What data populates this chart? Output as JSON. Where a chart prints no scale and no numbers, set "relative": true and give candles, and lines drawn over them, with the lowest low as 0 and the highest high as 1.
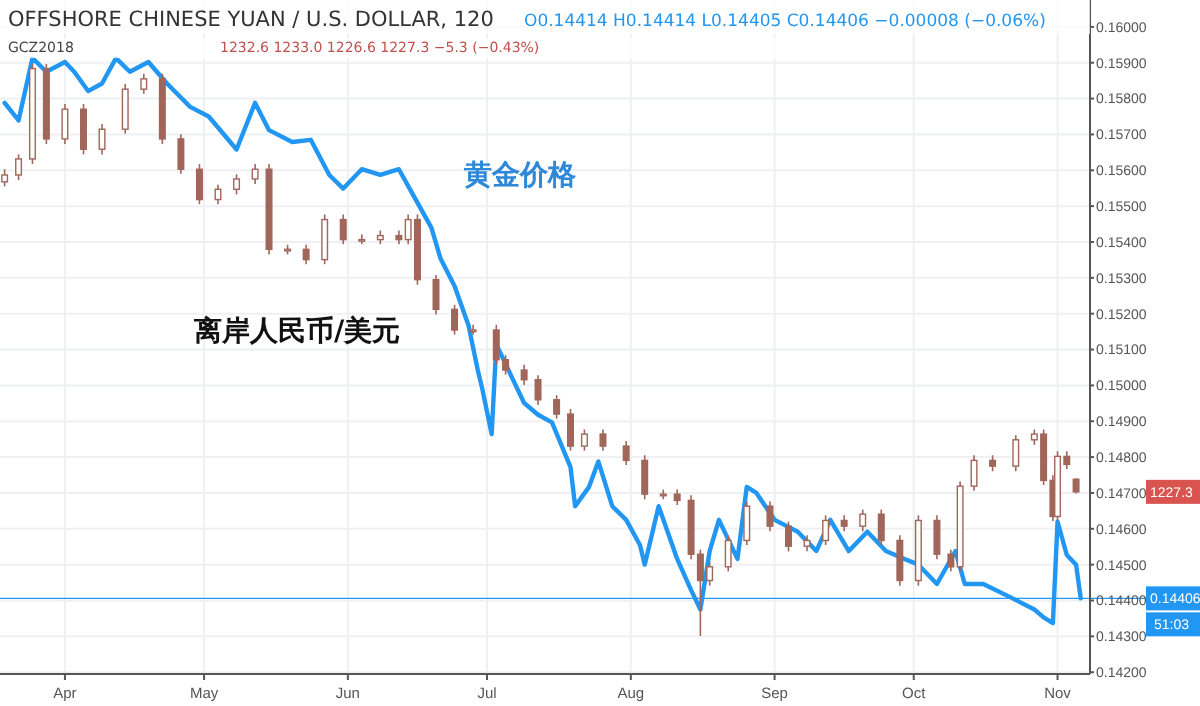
{
  "chart_data": [
    {
      "type": "line",
      "title": "OFFSHORE CHINESE YUAN / U.S. DOLLAR, 120",
      "subtitle": "O0.14414  H0.14414  L0.14405  C0.14406  −0.00008 (−0.06%)",
      "annotations": [
        "黄金价格",
        "离岸人民币/美元",
        "51:03"
      ],
      "xlim": [
        "2018-03-18",
        "2018-11-08"
      ],
      "xticks": [
        {
          "value": "2018-04-01",
          "label": "Apr"
        },
        {
          "value": "2018-05-01",
          "label": "May"
        },
        {
          "value": "2018-06-01",
          "label": "Jun"
        },
        {
          "value": "2018-07-01",
          "label": "Jul"
        },
        {
          "value": "2018-08-01",
          "label": "Aug"
        },
        {
          "value": "2018-09-01",
          "label": "Sep"
        },
        {
          "value": "2018-10-01",
          "label": "Oct"
        },
        {
          "value": "2018-11-01",
          "label": "Nov"
        }
      ],
      "ylim": [
        0.14195,
        0.16075
      ],
      "yticks": [
        {
          "value": 0.142,
          "label": "0.14200"
        },
        {
          "value": 0.143,
          "label": "0.14300"
        },
        {
          "value": 0.144,
          "label": "0.14400"
        },
        {
          "value": 0.145,
          "label": "0.14500"
        },
        {
          "value": 0.146,
          "label": "0.14600"
        },
        {
          "value": 0.147,
          "label": "0.14700"
        },
        {
          "value": 0.148,
          "label": "0.14800"
        },
        {
          "value": 0.149,
          "label": "0.14900"
        },
        {
          "value": 0.15,
          "label": "0.15000"
        },
        {
          "value": 0.151,
          "label": "0.15100"
        },
        {
          "value": 0.152,
          "label": "0.15200"
        },
        {
          "value": 0.153,
          "label": "0.15300"
        },
        {
          "value": 0.154,
          "label": "0.15400"
        },
        {
          "value": 0.155,
          "label": "0.15500"
        },
        {
          "value": 0.156,
          "label": "0.15600"
        },
        {
          "value": 0.157,
          "label": "0.15700"
        },
        {
          "value": 0.158,
          "label": "0.15800"
        },
        {
          "value": 0.159,
          "label": "0.15900"
        },
        {
          "value": 0.16,
          "label": "0.16000"
        }
      ],
      "grid": true,
      "ref_lines": [
        {
          "axis": "y",
          "value": 0.14406,
          "label": "0.14406",
          "color": "#2196f3"
        }
      ],
      "series": [
        {
          "color": "#2196f3",
          "x": [
            "2018-03-19",
            "2018-03-22",
            "2018-03-25",
            "2018-03-28",
            "2018-04-01",
            "2018-04-03",
            "2018-04-06",
            "2018-04-09",
            "2018-04-12",
            "2018-04-15",
            "2018-04-19",
            "2018-04-23",
            "2018-04-28",
            "2018-05-02",
            "2018-05-08",
            "2018-05-12",
            "2018-05-15",
            "2018-05-20",
            "2018-05-24",
            "2018-05-28",
            "2018-05-31",
            "2018-06-04",
            "2018-06-08",
            "2018-06-12",
            "2018-06-15",
            "2018-06-19",
            "2018-06-21",
            "2018-06-24",
            "2018-06-27",
            "2018-06-29",
            "2018-06-30",
            "2018-07-02",
            "2018-07-03",
            "2018-07-05",
            "2018-07-07",
            "2018-07-09",
            "2018-07-12",
            "2018-07-15",
            "2018-07-19",
            "2018-07-20",
            "2018-07-23",
            "2018-07-25",
            "2018-07-28",
            "2018-07-31",
            "2018-08-03",
            "2018-08-04",
            "2018-08-07",
            "2018-08-11",
            "2018-08-14",
            "2018-08-16",
            "2018-08-18",
            "2018-08-20",
            "2018-08-24",
            "2018-08-26",
            "2018-08-28",
            "2018-09-01",
            "2018-09-06",
            "2018-09-10",
            "2018-09-13",
            "2018-09-17",
            "2018-09-21",
            "2018-09-25",
            "2018-09-29",
            "2018-10-02",
            "2018-10-06",
            "2018-10-10",
            "2018-10-12",
            "2018-10-16",
            "2018-10-22",
            "2018-10-27",
            "2018-10-29",
            "2018-10-31",
            "2018-11-01",
            "2018-11-03",
            "2018-11-05",
            "2018-11-06"
          ],
          "values": [
            0.15788,
            0.15739,
            0.15913,
            0.15875,
            0.15902,
            0.15875,
            0.15821,
            0.15842,
            0.15913,
            0.15875,
            0.15902,
            0.15842,
            0.15777,
            0.1575,
            0.15658,
            0.15788,
            0.15712,
            0.15679,
            0.15685,
            0.15587,
            0.15549,
            0.15603,
            0.15587,
            0.15603,
            0.15533,
            0.1544,
            0.15353,
            0.15277,
            0.15168,
            0.15043,
            0.14989,
            0.14864,
            0.15114,
            0.1506,
            0.15005,
            0.14951,
            0.14918,
            0.14897,
            0.14772,
            0.14663,
            0.14717,
            0.14788,
            0.14663,
            0.14625,
            0.14554,
            0.145,
            0.14663,
            0.14516,
            0.14429,
            0.14375,
            0.14538,
            0.14625,
            0.14516,
            0.14717,
            0.14701,
            0.14625,
            0.14592,
            0.14538,
            0.14625,
            0.14538,
            0.14592,
            0.14538,
            0.14516,
            0.145,
            0.14446,
            0.14538,
            0.14446,
            0.14446,
            0.14408,
            0.14375,
            0.14353,
            0.14337,
            0.1462,
            0.14527,
            0.145,
            0.14406
          ]
        }
      ]
    },
    {
      "type": "candlestick",
      "relative": true,
      "xlim": [
        "2018-03-18",
        "2018-11-08"
      ],
      "annotations": [
        "GCZ2018",
        "1232.6  1233.0  1226.6  1227.3  −5.3 (−0.43%)",
        "1227.3"
      ],
      "series": [
        {
          "color": "#a0665a",
          "x": [
            "2018-03-19",
            "2018-03-22",
            "2018-03-25",
            "2018-03-28",
            "2018-04-01",
            "2018-04-05",
            "2018-04-09",
            "2018-04-14",
            "2018-04-18",
            "2018-04-22",
            "2018-04-26",
            "2018-04-30",
            "2018-05-04",
            "2018-05-08",
            "2018-05-12",
            "2018-05-15",
            "2018-05-19",
            "2018-05-23",
            "2018-05-27",
            "2018-05-31",
            "2018-06-04",
            "2018-06-08",
            "2018-06-12",
            "2018-06-14",
            "2018-06-16",
            "2018-06-20",
            "2018-06-24",
            "2018-06-28",
            "2018-07-03",
            "2018-07-05",
            "2018-07-09",
            "2018-07-12",
            "2018-07-16",
            "2018-07-19",
            "2018-07-22",
            "2018-07-26",
            "2018-07-31",
            "2018-08-04",
            "2018-08-08",
            "2018-08-11",
            "2018-08-14",
            "2018-08-16",
            "2018-08-18",
            "2018-08-22",
            "2018-08-26",
            "2018-08-31",
            "2018-09-04",
            "2018-09-08",
            "2018-09-12",
            "2018-09-16",
            "2018-09-20",
            "2018-09-24",
            "2018-09-28",
            "2018-10-02",
            "2018-10-06",
            "2018-10-09",
            "2018-10-11",
            "2018-10-14",
            "2018-10-18",
            "2018-10-23",
            "2018-10-27",
            "2018-10-29",
            "2018-10-31",
            "2018-11-01",
            "2018-11-03",
            "2018-11-05"
          ],
          "ohlc": [
            [
              0.794,
              0.816,
              0.786,
              0.806
            ],
            [
              0.806,
              0.842,
              0.797,
              0.834
            ],
            [
              0.834,
              1.0,
              0.825,
              0.992
            ],
            [
              0.992,
              1.0,
              0.86,
              0.869
            ],
            [
              0.869,
              0.93,
              0.86,
              0.921
            ],
            [
              0.921,
              0.93,
              0.842,
              0.851
            ],
            [
              0.851,
              0.895,
              0.842,
              0.886
            ],
            [
              0.886,
              0.965,
              0.878,
              0.956
            ],
            [
              0.956,
              0.983,
              0.948,
              0.974
            ],
            [
              0.974,
              0.983,
              0.86,
              0.869
            ],
            [
              0.869,
              0.877,
              0.808,
              0.816
            ],
            [
              0.816,
              0.825,
              0.755,
              0.763
            ],
            [
              0.763,
              0.789,
              0.755,
              0.781
            ],
            [
              0.781,
              0.807,
              0.772,
              0.799
            ],
            [
              0.799,
              0.825,
              0.79,
              0.816
            ],
            [
              0.816,
              0.825,
              0.667,
              0.676
            ],
            [
              0.676,
              0.684,
              0.667,
              0.676
            ],
            [
              0.676,
              0.684,
              0.65,
              0.658
            ],
            [
              0.658,
              0.737,
              0.65,
              0.728
            ],
            [
              0.728,
              0.737,
              0.685,
              0.693
            ],
            [
              0.693,
              0.702,
              0.685,
              0.693
            ],
            [
              0.693,
              0.709,
              0.685,
              0.7
            ],
            [
              0.7,
              0.709,
              0.685,
              0.693
            ],
            [
              0.693,
              0.737,
              0.685,
              0.728
            ],
            [
              0.728,
              0.737,
              0.614,
              0.623
            ],
            [
              0.623,
              0.631,
              0.562,
              0.571
            ],
            [
              0.571,
              0.579,
              0.527,
              0.535
            ],
            [
              0.535,
              0.544,
              0.527,
              0.535
            ],
            [
              0.535,
              0.544,
              0.474,
              0.483
            ],
            [
              0.483,
              0.491,
              0.457,
              0.465
            ],
            [
              0.465,
              0.474,
              0.439,
              0.448
            ],
            [
              0.448,
              0.456,
              0.404,
              0.413
            ],
            [
              0.413,
              0.421,
              0.38,
              0.388
            ],
            [
              0.388,
              0.397,
              0.324,
              0.332
            ],
            [
              0.332,
              0.361,
              0.324,
              0.353
            ],
            [
              0.353,
              0.361,
              0.324,
              0.332
            ],
            [
              0.332,
              0.341,
              0.299,
              0.307
            ],
            [
              0.307,
              0.316,
              0.239,
              0.248
            ],
            [
              0.248,
              0.256,
              0.239,
              0.248
            ],
            [
              0.248,
              0.256,
              0.229,
              0.237
            ],
            [
              0.237,
              0.246,
              0.134,
              0.143
            ],
            [
              0.143,
              0.151,
              0.0,
              0.097
            ],
            [
              0.097,
              0.13,
              0.088,
              0.121
            ],
            [
              0.121,
              0.176,
              0.113,
              0.167
            ],
            [
              0.167,
              0.235,
              0.159,
              0.227
            ],
            [
              0.227,
              0.235,
              0.183,
              0.192
            ],
            [
              0.192,
              0.2,
              0.148,
              0.157
            ],
            [
              0.157,
              0.176,
              0.148,
              0.167
            ],
            [
              0.167,
              0.211,
              0.159,
              0.202
            ],
            [
              0.202,
              0.211,
              0.183,
              0.192
            ],
            [
              0.192,
              0.221,
              0.183,
              0.213
            ],
            [
              0.213,
              0.221,
              0.159,
              0.167
            ],
            [
              0.167,
              0.176,
              0.088,
              0.097
            ],
            [
              0.097,
              0.211,
              0.088,
              0.202
            ],
            [
              0.202,
              0.211,
              0.134,
              0.143
            ],
            [
              0.143,
              0.151,
              0.113,
              0.121
            ],
            [
              0.121,
              0.27,
              0.113,
              0.262
            ],
            [
              0.262,
              0.316,
              0.254,
              0.307
            ],
            [
              0.307,
              0.316,
              0.288,
              0.297
            ],
            [
              0.297,
              0.351,
              0.288,
              0.343
            ],
            [
              0.343,
              0.361,
              0.334,
              0.353
            ],
            [
              0.353,
              0.361,
              0.264,
              0.272
            ],
            [
              0.272,
              0.281,
              0.201,
              0.209
            ],
            [
              0.209,
              0.323,
              0.201,
              0.314
            ],
            [
              0.314,
              0.323,
              0.292,
              0.3
            ],
            [
              0.274,
              0.276,
              0.249,
              0.252
            ]
          ]
        }
      ]
    }
  ]
}
